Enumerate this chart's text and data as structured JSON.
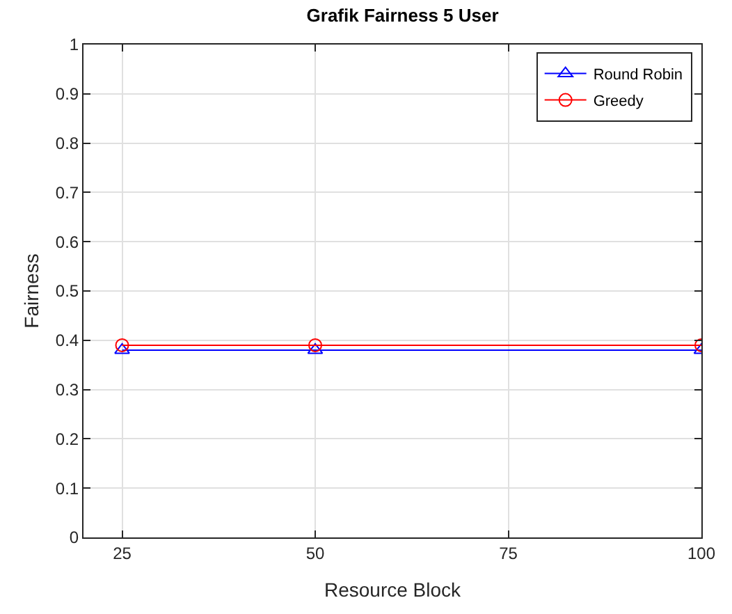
{
  "chart_data": {
    "type": "line",
    "title": "Grafik Fairness 5 User",
    "xlabel": "Resource Block",
    "ylabel": "Fairness",
    "x": [
      25,
      50,
      100
    ],
    "series": [
      {
        "name": "Round Robin",
        "color": "#0000ff",
        "values": [
          0.38,
          0.38,
          0.38
        ],
        "marker": "triangle"
      },
      {
        "name": "Greedy",
        "color": "#ff0000",
        "values": [
          0.39,
          0.39,
          0.39
        ],
        "marker": "circle"
      }
    ],
    "xlim": [
      20,
      100
    ],
    "xticks": [
      25,
      50,
      75,
      100
    ],
    "ylim": [
      0,
      1
    ],
    "yticks": [
      0,
      0.1,
      0.2,
      0.3,
      0.4,
      0.5,
      0.6,
      0.7,
      0.8,
      0.9,
      1
    ],
    "grid": true,
    "legend": "top right",
    "line_style": "solid"
  }
}
